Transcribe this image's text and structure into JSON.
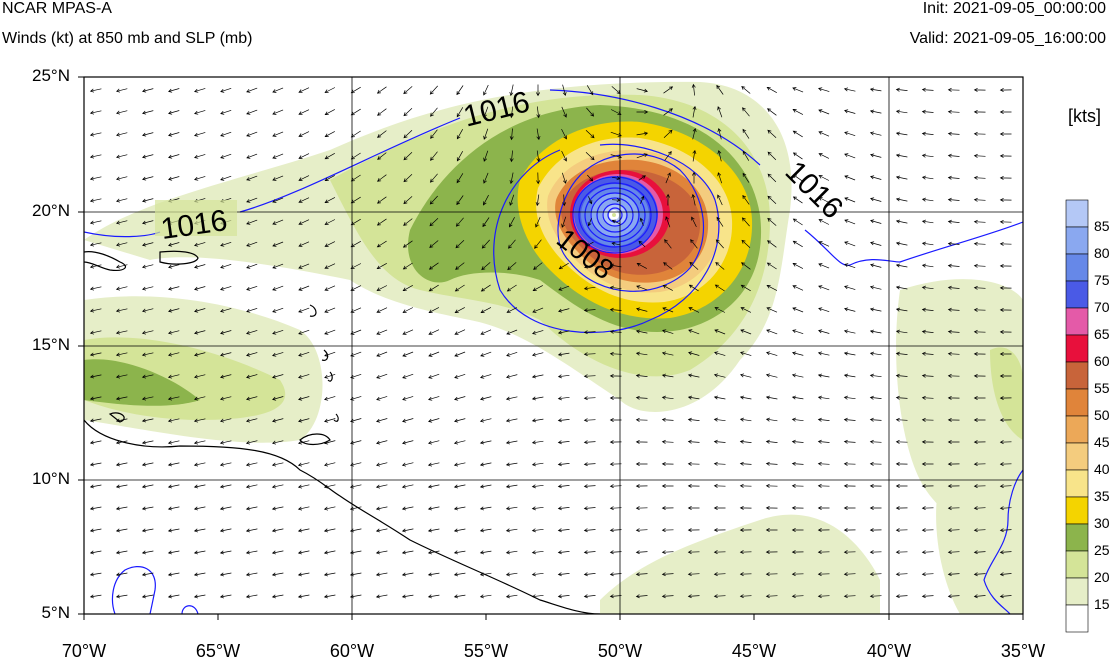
{
  "header": {
    "model": "NCAR MPAS-A",
    "field": "Winds (kt) at 850 mb and SLP (mb)",
    "init": "Init: 2021-09-05_00:00:00",
    "valid": "Valid: 2021-09-05_16:00:00"
  },
  "map": {
    "lat_labels": [
      "25°N",
      "20°N",
      "15°N",
      "10°N",
      "5°N"
    ],
    "lon_labels": [
      "70°W",
      "65°W",
      "60°W",
      "55°W",
      "50°W",
      "45°W",
      "40°W",
      "35°W"
    ],
    "lat_range": [
      5,
      25
    ],
    "lon_range": [
      -70,
      -35
    ],
    "isobar_labels": [
      "1016",
      "1016",
      "1016",
      "1008"
    ],
    "storm_center": {
      "lon": -50.0,
      "lat": 19.8
    }
  },
  "colorbar": {
    "title": "[kts]",
    "levels": [
      "85",
      "80",
      "75",
      "70",
      "65",
      "60",
      "55",
      "50",
      "45",
      "40",
      "35",
      "30",
      "25",
      "20",
      "15"
    ],
    "colors": [
      "#b4c8f6",
      "#8aa8f0",
      "#6688e8",
      "#4a5ae6",
      "#e45aa8",
      "#e8103c",
      "#c8643a",
      "#e0843a",
      "#eca858",
      "#f4cc7e",
      "#f8e48a",
      "#f4d400",
      "#8cb44c",
      "#d4e498",
      "#e6eec8",
      "#ffffff"
    ]
  }
}
